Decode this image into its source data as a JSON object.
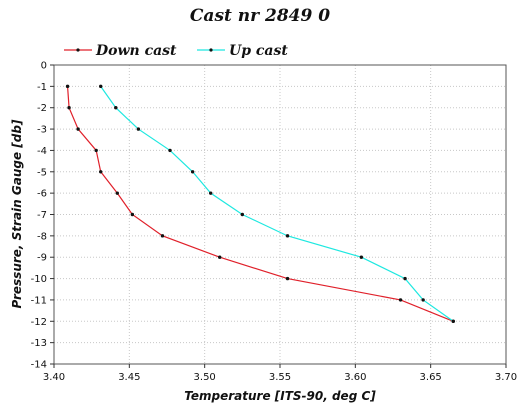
{
  "chart_data": {
    "type": "line",
    "title": "Cast nr 2849 0",
    "xlabel": "Temperature [ITS-90, deg C]",
    "ylabel": "Pressure, Strain Gauge [db]",
    "xlim": [
      3.4,
      3.7
    ],
    "ylim": [
      -14,
      0
    ],
    "x_ticks": [
      "3.40",
      "3.45",
      "3.50",
      "3.55",
      "3.60",
      "3.65",
      "3.70"
    ],
    "y_ticks": [
      "0",
      "-1",
      "-2",
      "-3",
      "-4",
      "-5",
      "-6",
      "-7",
      "-8",
      "-9",
      "-10",
      "-11",
      "-12",
      "-13",
      "-14"
    ],
    "grid": true,
    "legend_position": "top",
    "series": [
      {
        "name": "Down cast",
        "color": "#e0202a",
        "points": [
          {
            "x": 3.409,
            "y": -1.0
          },
          {
            "x": 3.41,
            "y": -2.0
          },
          {
            "x": 3.416,
            "y": -3.0
          },
          {
            "x": 3.428,
            "y": -4.0
          },
          {
            "x": 3.431,
            "y": -5.0
          },
          {
            "x": 3.442,
            "y": -6.0
          },
          {
            "x": 3.452,
            "y": -7.0
          },
          {
            "x": 3.472,
            "y": -8.0
          },
          {
            "x": 3.51,
            "y": -9.0
          },
          {
            "x": 3.555,
            "y": -10.0
          },
          {
            "x": 3.63,
            "y": -11.0
          },
          {
            "x": 3.665,
            "y": -12.0
          }
        ]
      },
      {
        "name": "Up cast",
        "color": "#1ee8e0",
        "points": [
          {
            "x": 3.431,
            "y": -1.0
          },
          {
            "x": 3.441,
            "y": -2.0
          },
          {
            "x": 3.456,
            "y": -3.0
          },
          {
            "x": 3.477,
            "y": -4.0
          },
          {
            "x": 3.492,
            "y": -5.0
          },
          {
            "x": 3.504,
            "y": -6.0
          },
          {
            "x": 3.525,
            "y": -7.0
          },
          {
            "x": 3.555,
            "y": -8.0
          },
          {
            "x": 3.604,
            "y": -9.0
          },
          {
            "x": 3.633,
            "y": -10.0
          },
          {
            "x": 3.645,
            "y": -11.0
          },
          {
            "x": 3.665,
            "y": -12.0
          }
        ]
      }
    ]
  }
}
